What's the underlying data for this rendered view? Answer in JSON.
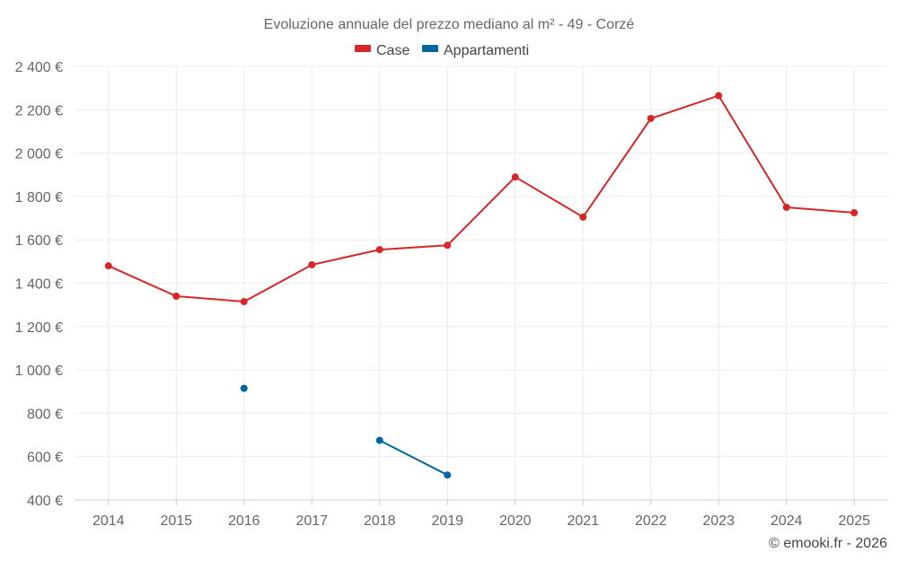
{
  "chart_data": {
    "type": "line",
    "title": "Evoluzione annuale del prezzo mediano al m² - 49 - Corzé",
    "xlabel": "",
    "ylabel": "",
    "categories": [
      "2014",
      "2015",
      "2016",
      "2017",
      "2018",
      "2019",
      "2020",
      "2021",
      "2022",
      "2023",
      "2024",
      "2025"
    ],
    "ylim": [
      400,
      2400
    ],
    "yticks": [
      400,
      600,
      800,
      1000,
      1200,
      1400,
      1600,
      1800,
      2000,
      2200,
      2400
    ],
    "ytick_labels": [
      "400 €",
      "600 €",
      "800 €",
      "1 000 €",
      "1 200 €",
      "1 400 €",
      "1 600 €",
      "1 800 €",
      "2 000 €",
      "2 200 €",
      "2 400 €"
    ],
    "grid": true,
    "legend_position": "top-center",
    "series": [
      {
        "name": "Case",
        "color": "#d62728",
        "values": [
          1480,
          1340,
          1315,
          1485,
          1555,
          1575,
          1890,
          1705,
          2160,
          2265,
          1750,
          1725
        ]
      },
      {
        "name": "Appartamenti",
        "color": "#0066a1",
        "values": [
          null,
          null,
          915,
          null,
          675,
          515,
          null,
          null,
          null,
          null,
          null,
          null
        ]
      }
    ]
  },
  "credit": "© emooki.fr - 2026"
}
